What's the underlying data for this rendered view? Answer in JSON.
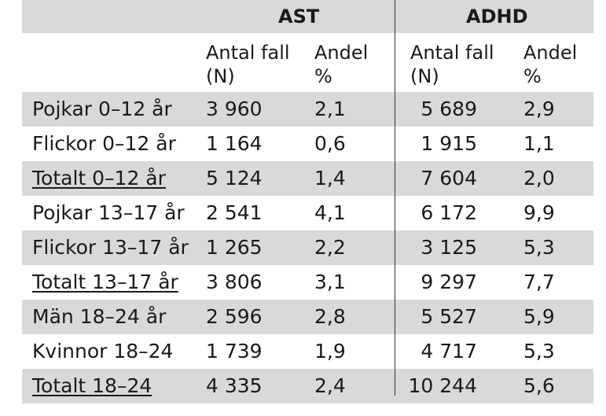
{
  "headers": {
    "group1": "AST",
    "group2": "ADHD",
    "sub": {
      "ast_n": [
        "Antal fall",
        "(N)"
      ],
      "ast_pct": [
        "Andel",
        "%"
      ],
      "adhd_n": [
        "Antal fall",
        "(N)"
      ],
      "adhd_pct": [
        "Andel",
        "%"
      ]
    }
  },
  "rows": [
    {
      "label": "Pojkar 0–12 år",
      "ast_n": "3 960",
      "ast_pct": "2,1",
      "adhd_n": "5 689",
      "adhd_pct": "2,9"
    },
    {
      "label": "Flickor 0–12 år",
      "ast_n": "1 164",
      "ast_pct": "0,6",
      "adhd_n": "1 915",
      "adhd_pct": "1,1"
    },
    {
      "label": "Totalt 0–12 år",
      "ast_n": "5 124",
      "ast_pct": "1,4",
      "adhd_n": "7 604",
      "adhd_pct": "2,0"
    },
    {
      "label": "Pojkar 13–17 år",
      "ast_n": "2 541",
      "ast_pct": "4,1",
      "adhd_n": "6 172",
      "adhd_pct": "9,9"
    },
    {
      "label": "Flickor 13–17 år",
      "ast_n": "1 265",
      "ast_pct": "2,2",
      "adhd_n": "3 125",
      "adhd_pct": "5,3"
    },
    {
      "label": "Totalt 13–17 år",
      "ast_n": "3 806",
      "ast_pct": "3,1",
      "adhd_n": "9 297",
      "adhd_pct": "7,7"
    },
    {
      "label": "Män 18–24 år",
      "ast_n": "2 596",
      "ast_pct": "2,8",
      "adhd_n": "5 527",
      "adhd_pct": "5,9"
    },
    {
      "label": "Kvinnor 18–24",
      "ast_n": "1 739",
      "ast_pct": "1,9",
      "adhd_n": "4 717",
      "adhd_pct": "5,3"
    },
    {
      "label": "Totalt 18–24",
      "ast_n": "4 335",
      "ast_pct": "2,4",
      "adhd_n": "10 244",
      "adhd_pct": "5,6"
    }
  ]
}
